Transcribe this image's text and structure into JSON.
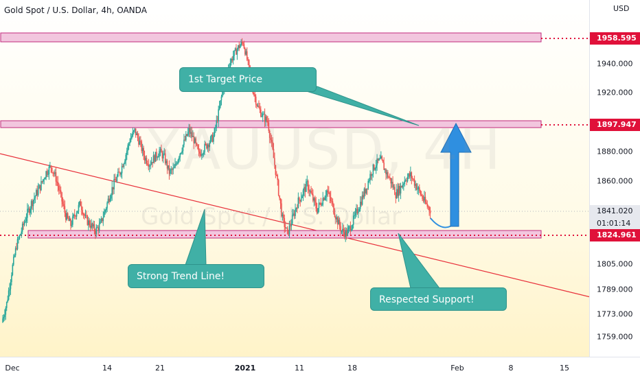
{
  "symbol": {
    "title": "Gold Spot / U.S. Dollar, 4h, OANDA",
    "currency": "USD"
  },
  "watermark": {
    "ticker": "XAUUSD, 4H",
    "name": "Gold Spot / U.S. Dollar"
  },
  "price_scale": {
    "labels": [
      "1940.000",
      "1920.000",
      "1880.000",
      "1860.000",
      "1805.000",
      "1789.000",
      "1773.000",
      "1759.000"
    ],
    "tags": {
      "resistance": "1958.595",
      "target": "1897.947",
      "current": "1841.020",
      "countdown": "01:01:14",
      "support": "1824.961"
    }
  },
  "time_axis": {
    "labels": [
      "Dec",
      "14",
      "21",
      "2021",
      "11",
      "18",
      "Feb",
      "8",
      "15"
    ]
  },
  "annotations": {
    "target_callout": "1st Target Price",
    "trendline_callout": "Strong Trend Line!",
    "support_callout": "Respected Support!"
  },
  "colors": {
    "up_candle": "#26a69a",
    "down_candle": "#ef5350",
    "level_line": "#e0113a",
    "zone_fill": "#f2c6de",
    "zone_border": "#c02a7c",
    "trend_line": "#e8303a",
    "arrow": "#2f8fe0",
    "callout": "#40b0a6"
  },
  "chart_data": {
    "type": "candlestick",
    "timeframe": "4h",
    "x": [
      "Dec",
      "14",
      "21",
      "2021",
      "11",
      "18",
      "Feb",
      "8",
      "15"
    ],
    "ylim": [
      1750,
      1975
    ],
    "levels": [
      1958.595,
      1897.947,
      1824.961
    ],
    "last_price": 1841.02,
    "path": [
      1768,
      1780,
      1800,
      1818,
      1828,
      1838,
      1846,
      1852,
      1858,
      1866,
      1870,
      1862,
      1850,
      1838,
      1832,
      1840,
      1846,
      1836,
      1832,
      1828,
      1832,
      1842,
      1852,
      1860,
      1866,
      1876,
      1888,
      1894,
      1886,
      1876,
      1872,
      1876,
      1880,
      1876,
      1866,
      1868,
      1878,
      1886,
      1894,
      1888,
      1878,
      1882,
      1886,
      1890,
      1906,
      1924,
      1938,
      1946,
      1952,
      1956,
      1940,
      1922,
      1910,
      1904,
      1900,
      1880,
      1858,
      1836,
      1826,
      1836,
      1846,
      1852,
      1858,
      1850,
      1842,
      1848,
      1854,
      1846,
      1836,
      1828,
      1826,
      1832,
      1840,
      1848,
      1856,
      1866,
      1872,
      1874,
      1866,
      1860,
      1852,
      1856,
      1862,
      1864,
      1858,
      1852,
      1846,
      1842
    ]
  }
}
